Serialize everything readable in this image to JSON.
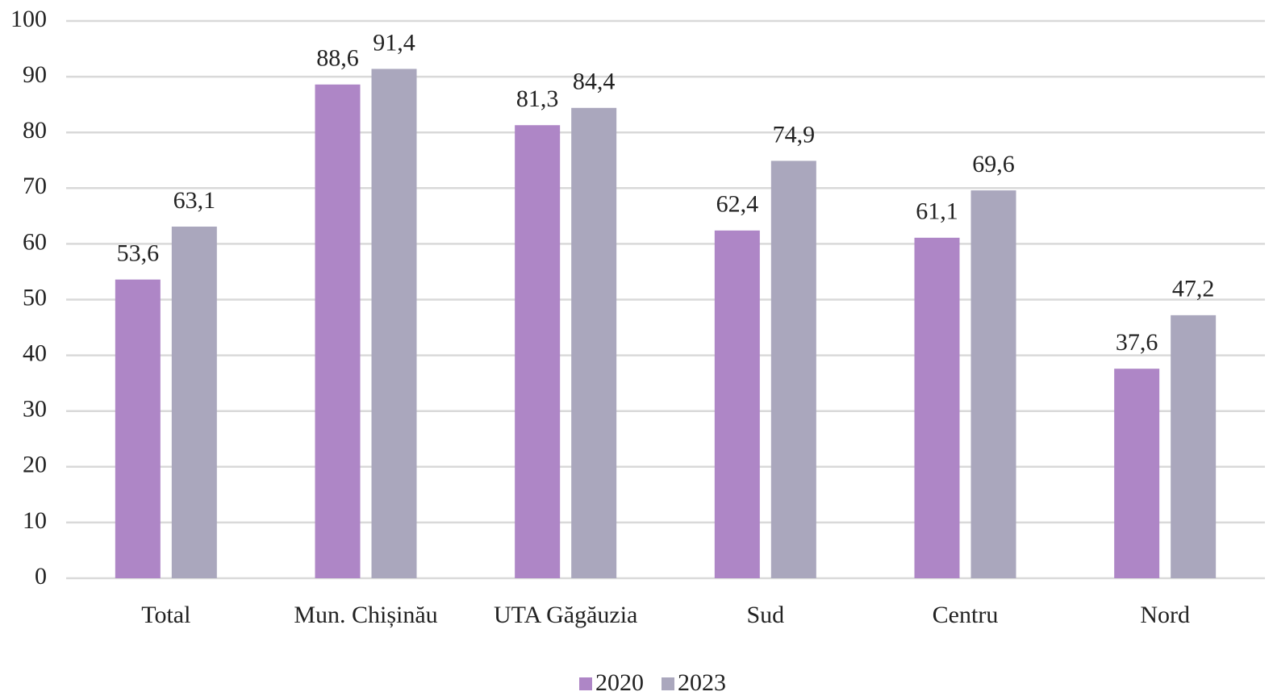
{
  "chart_data": {
    "type": "bar",
    "categories": [
      "Total",
      "Mun. Chișinău",
      "UTA Găgăuzia",
      "Sud",
      "Centru",
      "Nord"
    ],
    "series": [
      {
        "name": "2020",
        "color": "#ae86c6",
        "values": [
          53.6,
          88.6,
          81.3,
          62.4,
          61.1,
          37.6
        ],
        "value_labels": [
          "53,6",
          "88,6",
          "81,3",
          "62,4",
          "61,1",
          "37,6"
        ]
      },
      {
        "name": "2023",
        "color": "#aaa7bd",
        "values": [
          63.1,
          91.4,
          84.4,
          74.9,
          69.6,
          47.2
        ],
        "value_labels": [
          "63,1",
          "91,4",
          "84,4",
          "74,9",
          "69,6",
          "47,2"
        ]
      }
    ],
    "ylim": [
      0,
      100
    ],
    "yticks": [
      0,
      10,
      20,
      30,
      40,
      50,
      60,
      70,
      80,
      90,
      100
    ],
    "grid": true,
    "legend": "bottom"
  }
}
